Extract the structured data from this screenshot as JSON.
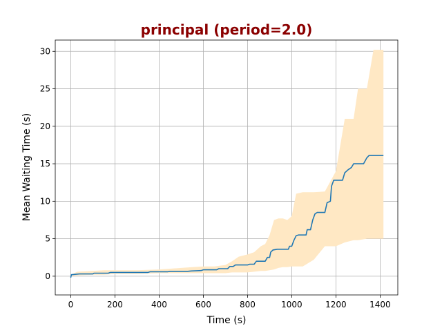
{
  "chart_data": {
    "type": "line",
    "title": "principal (period=2.0)",
    "xlabel": "Time (s)",
    "ylabel": "Mean Waiting Time (s)",
    "xlim": [
      -70,
      1480
    ],
    "ylim": [
      -2.5,
      31.5
    ],
    "xticks": [
      0,
      200,
      400,
      600,
      800,
      1000,
      1200,
      1400
    ],
    "yticks": [
      0,
      5,
      10,
      15,
      20,
      25,
      30
    ],
    "grid": true,
    "colors": {
      "title": "#8b0000",
      "line": "#1f77b4",
      "band": "#ffe8c4"
    },
    "series": [
      {
        "values": [
          [
            0,
            -0.2
          ],
          [
            3,
            0.2
          ],
          [
            40,
            0.3
          ],
          [
            100,
            0.3
          ],
          [
            105,
            0.4
          ],
          [
            170,
            0.4
          ],
          [
            180,
            0.5
          ],
          [
            350,
            0.5
          ],
          [
            360,
            0.6
          ],
          [
            440,
            0.6
          ],
          [
            450,
            0.65
          ],
          [
            530,
            0.65
          ],
          [
            545,
            0.7
          ],
          [
            590,
            0.75
          ],
          [
            600,
            0.85
          ],
          [
            660,
            0.85
          ],
          [
            670,
            1.0
          ],
          [
            710,
            1.0
          ],
          [
            720,
            1.3
          ],
          [
            735,
            1.3
          ],
          [
            745,
            1.5
          ],
          [
            800,
            1.5
          ],
          [
            810,
            1.6
          ],
          [
            830,
            1.6
          ],
          [
            840,
            2.0
          ],
          [
            880,
            2.0
          ],
          [
            890,
            2.5
          ],
          [
            900,
            2.5
          ],
          [
            905,
            3.2
          ],
          [
            915,
            3.5
          ],
          [
            935,
            3.6
          ],
          [
            985,
            3.6
          ],
          [
            990,
            4.0
          ],
          [
            1000,
            4.0
          ],
          [
            1010,
            4.8
          ],
          [
            1020,
            5.4
          ],
          [
            1030,
            5.5
          ],
          [
            1065,
            5.5
          ],
          [
            1070,
            6.2
          ],
          [
            1085,
            6.2
          ],
          [
            1095,
            7.5
          ],
          [
            1105,
            8.3
          ],
          [
            1115,
            8.5
          ],
          [
            1150,
            8.5
          ],
          [
            1160,
            9.8
          ],
          [
            1175,
            10.0
          ],
          [
            1180,
            12.0
          ],
          [
            1190,
            12.8
          ],
          [
            1230,
            12.8
          ],
          [
            1240,
            13.8
          ],
          [
            1255,
            14.2
          ],
          [
            1270,
            14.5
          ],
          [
            1280,
            15.0
          ],
          [
            1325,
            15.0
          ],
          [
            1340,
            15.8
          ],
          [
            1350,
            16.1
          ],
          [
            1415,
            16.1
          ]
        ],
        "band": {
          "x": [
            0,
            30,
            100,
            150,
            200,
            300,
            400,
            450,
            500,
            550,
            600,
            650,
            700,
            730,
            760,
            800,
            830,
            860,
            880,
            900,
            920,
            940,
            960,
            980,
            1000,
            1020,
            1050,
            1100,
            1150,
            1200,
            1240,
            1280,
            1300,
            1340,
            1370,
            1400,
            1415
          ],
          "lower": [
            0.0,
            0.1,
            0.2,
            0.2,
            0.3,
            0.3,
            0.4,
            0.4,
            0.4,
            0.4,
            0.4,
            0.4,
            0.4,
            0.5,
            0.5,
            0.5,
            0.6,
            0.7,
            0.7,
            0.8,
            0.9,
            1.1,
            1.2,
            1.2,
            1.3,
            1.3,
            1.3,
            2.2,
            4.0,
            4.0,
            4.5,
            4.8,
            4.8,
            5.0,
            5.0,
            5.0,
            5.0
          ],
          "upper": [
            0.2,
            0.6,
            0.7,
            0.8,
            0.8,
            0.8,
            0.9,
            1.0,
            1.1,
            1.2,
            1.3,
            1.3,
            1.5,
            2.0,
            2.6,
            2.9,
            3.2,
            4.0,
            4.3,
            5.5,
            7.5,
            7.7,
            7.7,
            7.5,
            8.0,
            11.0,
            11.2,
            11.2,
            11.3,
            14.0,
            21.0,
            21.0,
            25.0,
            25.0,
            30.2,
            30.2,
            30.2
          ]
        }
      }
    ]
  }
}
